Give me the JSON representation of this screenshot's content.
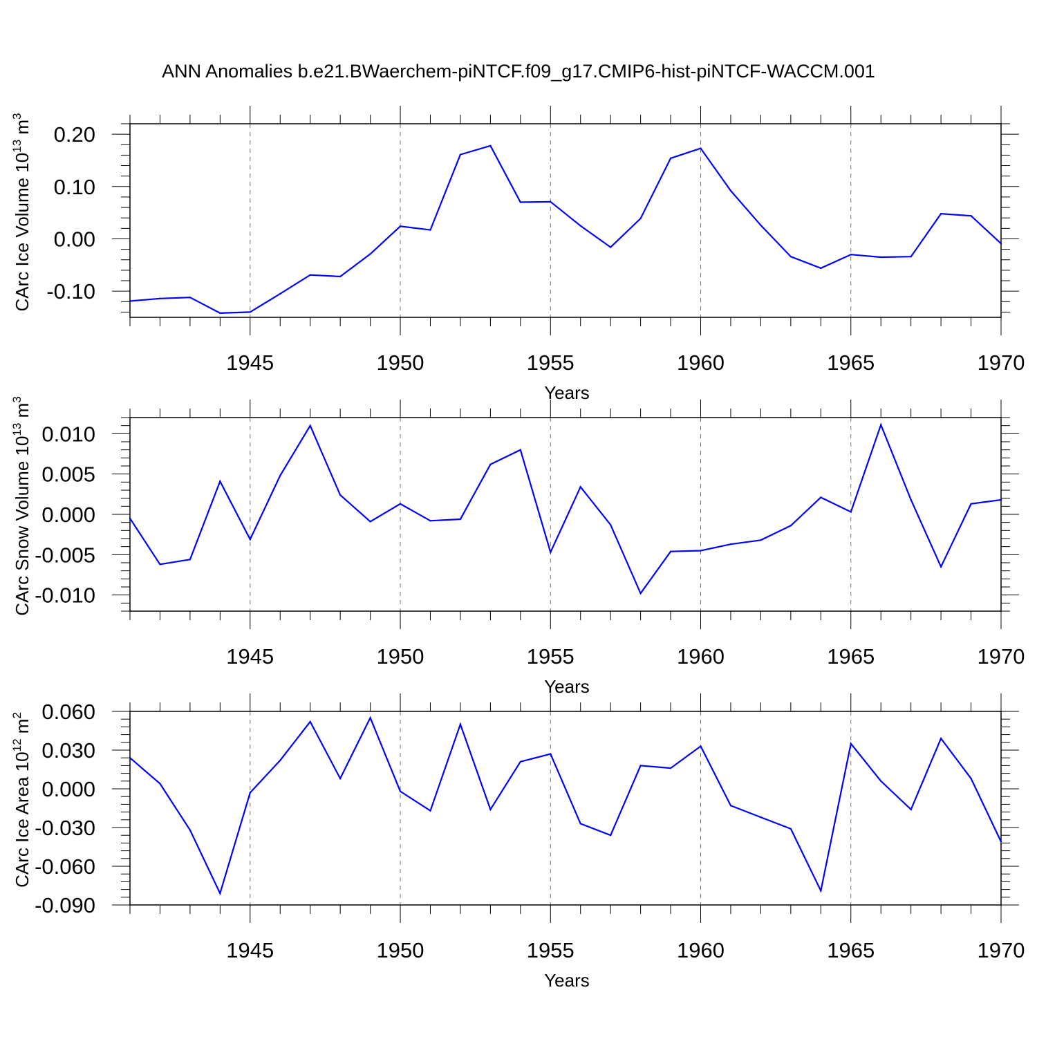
{
  "title": "ANN Anomalies b.e21.BWaerchem-piNTCF.f09_g17.CMIP6-hist-piNTCF-WACCM.001",
  "colors": {
    "series": "#0000ff",
    "axis": "#000000",
    "grid": "#777777"
  },
  "chart_data": [
    {
      "type": "line",
      "ylabel_main": "CArc Ice Volume 10",
      "ylabel_exp": "13",
      "ylabel_unit": " m",
      "ylabel_unit_exp": "3",
      "xlabel": "Years",
      "xlim": [
        1941,
        1970
      ],
      "ylim": [
        -0.15,
        0.22
      ],
      "yticks": [
        0.2,
        0.1,
        0.0,
        -0.1
      ],
      "ytick_labels": [
        "0.20",
        "0.10",
        "0.00",
        "-0.10"
      ],
      "xticks": [
        1945,
        1950,
        1955,
        1960,
        1965,
        1970
      ],
      "xtick_labels": [
        "1945",
        "1950",
        "1955",
        "1960",
        "1965",
        "1970"
      ],
      "x": [
        1941,
        1942,
        1943,
        1944,
        1945,
        1946,
        1947,
        1948,
        1949,
        1950,
        1951,
        1952,
        1953,
        1954,
        1955,
        1956,
        1957,
        1958,
        1959,
        1960,
        1961,
        1962,
        1963,
        1964,
        1965,
        1966,
        1967,
        1968,
        1969,
        1970
      ],
      "values": [
        -0.119,
        -0.114,
        -0.112,
        -0.142,
        -0.14,
        -0.105,
        -0.069,
        -0.072,
        -0.029,
        0.024,
        0.017,
        0.161,
        0.178,
        0.07,
        0.071,
        0.025,
        -0.016,
        0.039,
        0.154,
        0.173,
        0.092,
        0.026,
        -0.034,
        -0.056,
        -0.03,
        -0.035,
        -0.034,
        0.048,
        0.044,
        -0.009
      ]
    },
    {
      "type": "line",
      "ylabel_main": "CArc Snow Volume 10",
      "ylabel_exp": "13",
      "ylabel_unit": " m",
      "ylabel_unit_exp": "3",
      "xlabel": "Years",
      "xlim": [
        1941,
        1970
      ],
      "ylim": [
        -0.012,
        0.012
      ],
      "yticks": [
        0.01,
        0.005,
        0.0,
        -0.005,
        -0.01
      ],
      "ytick_labels": [
        "0.010",
        "0.005",
        "0.000",
        "-0.005",
        "-0.010"
      ],
      "xticks": [
        1945,
        1950,
        1955,
        1960,
        1965,
        1970
      ],
      "xtick_labels": [
        "1945",
        "1950",
        "1955",
        "1960",
        "1965",
        "1970"
      ],
      "x": [
        1941,
        1942,
        1943,
        1944,
        1945,
        1946,
        1947,
        1948,
        1949,
        1950,
        1951,
        1952,
        1953,
        1954,
        1955,
        1956,
        1957,
        1958,
        1959,
        1960,
        1961,
        1962,
        1963,
        1964,
        1965,
        1966,
        1967,
        1968,
        1969,
        1970
      ],
      "values": [
        -0.0005,
        -0.0062,
        -0.0056,
        0.0041,
        -0.0031,
        0.0048,
        0.011,
        0.0024,
        -0.0009,
        0.0013,
        -0.0008,
        -0.0006,
        0.0062,
        0.008,
        -0.0047,
        0.0034,
        -0.0013,
        -0.0098,
        -0.0046,
        -0.0045,
        -0.0037,
        -0.0032,
        -0.0014,
        0.0021,
        0.0003,
        0.0111,
        0.0018,
        -0.0065,
        0.0013,
        0.0018
      ]
    },
    {
      "type": "line",
      "ylabel_main": "CArc Ice Area 10",
      "ylabel_exp": "12",
      "ylabel_unit": " m",
      "ylabel_unit_exp": "2",
      "xlabel": "Years",
      "xlim": [
        1941,
        1970
      ],
      "ylim": [
        -0.09,
        0.06
      ],
      "yticks": [
        0.06,
        0.03,
        0.0,
        -0.03,
        -0.06,
        -0.09
      ],
      "ytick_labels": [
        "0.060",
        "0.030",
        "0.000",
        "-0.030",
        "-0.060",
        "-0.090"
      ],
      "xticks": [
        1945,
        1950,
        1955,
        1960,
        1965,
        1970
      ],
      "xtick_labels": [
        "1945",
        "1950",
        "1955",
        "1960",
        "1965",
        "1970"
      ],
      "x": [
        1941,
        1942,
        1943,
        1944,
        1945,
        1946,
        1947,
        1948,
        1949,
        1950,
        1951,
        1952,
        1953,
        1954,
        1955,
        1956,
        1957,
        1958,
        1959,
        1960,
        1961,
        1962,
        1963,
        1964,
        1965,
        1966,
        1967,
        1968,
        1969,
        1970
      ],
      "values": [
        0.024,
        0.004,
        -0.032,
        -0.081,
        -0.003,
        0.022,
        0.052,
        0.008,
        0.055,
        -0.002,
        -0.017,
        0.05,
        -0.016,
        0.021,
        0.027,
        -0.027,
        -0.036,
        0.018,
        0.016,
        0.033,
        -0.013,
        -0.022,
        -0.031,
        -0.079,
        0.035,
        0.006,
        -0.016,
        0.039,
        0.008,
        -0.041
      ]
    }
  ]
}
